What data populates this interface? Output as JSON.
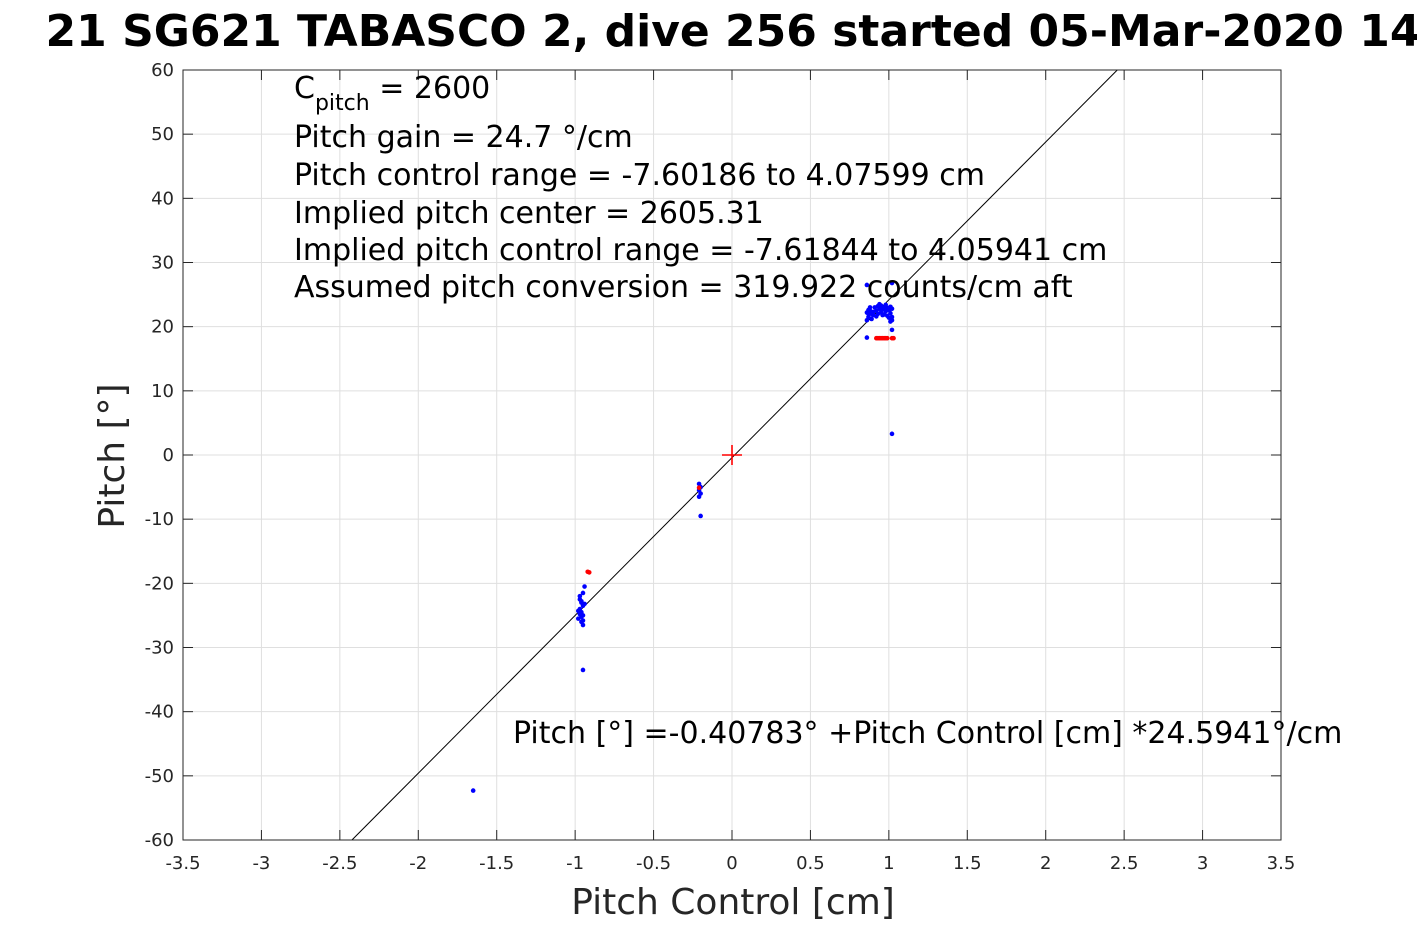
{
  "chart_data": {
    "type": "scatter",
    "title": "21 SG621 TABASCO 2, dive 256 started 05-Mar-2020 14",
    "xlabel": "Pitch Control [cm]",
    "ylabel": "Pitch [°]",
    "xlim": [
      -3.5,
      3.5
    ],
    "ylim": [
      -60,
      60
    ],
    "xticks": [
      -3.5,
      -3,
      -2.5,
      -2,
      -1.5,
      -1,
      -0.5,
      0,
      0.5,
      1,
      1.5,
      2,
      2.5,
      3,
      3.5
    ],
    "xtick_labels": [
      "-3.5",
      "-3",
      "-2.5",
      "-2",
      "-1.5",
      "-1",
      "-0.5",
      "0",
      "0.5",
      "1",
      "1.5",
      "2",
      "2.5",
      "3",
      "3.5"
    ],
    "yticks": [
      -60,
      -50,
      -40,
      -30,
      -20,
      -10,
      0,
      10,
      20,
      30,
      40,
      50,
      60
    ],
    "ytick_labels": [
      "-60",
      "-50",
      "-40",
      "-30",
      "-20",
      "-10",
      "0",
      "10",
      "20",
      "30",
      "40",
      "50",
      "60"
    ],
    "grid": true,
    "fit_line": {
      "intercept": -0.40783,
      "slope": 24.5941,
      "color": "#000000"
    },
    "origin_marker": {
      "x": 0,
      "y": 0,
      "symbol": "+",
      "color": "#ff0000"
    },
    "annotation_lines": [
      {
        "main": "C",
        "sub": "pitch",
        "rest": " = 2600"
      },
      {
        "main": "Pitch gain = 24.7 °/cm"
      },
      {
        "main": "Pitch control range = -7.60186 to 4.07599 cm"
      },
      {
        "main": "Implied pitch center = 2605.31"
      },
      {
        "main": "Implied pitch control range = -7.61844 to 4.05941 cm"
      },
      {
        "main": "Assumed pitch conversion = 319.922 counts/cm aft"
      }
    ],
    "fit_annotation": "Pitch [°] =-0.40783° +Pitch Control [cm] *24.5941°/cm",
    "series": [
      {
        "color": "#0000ff",
        "points": [
          [
            -1.65,
            -52.3
          ],
          [
            -0.95,
            -33.5
          ],
          [
            -0.97,
            -22.5
          ],
          [
            -0.96,
            -23.0
          ],
          [
            -0.95,
            -23.5
          ],
          [
            -0.97,
            -24.0
          ],
          [
            -0.96,
            -24.5
          ],
          [
            -0.95,
            -25.0
          ],
          [
            -0.98,
            -25.5
          ],
          [
            -0.96,
            -26.0
          ],
          [
            -0.95,
            -26.5
          ],
          [
            -0.97,
            -22.0
          ],
          [
            -0.95,
            -21.5
          ],
          [
            -0.94,
            -20.5
          ],
          [
            -0.96,
            -22.8
          ],
          [
            -0.98,
            -24.3
          ],
          [
            -0.95,
            -25.8
          ],
          [
            -0.94,
            -23.2
          ],
          [
            -0.97,
            -24.8
          ],
          [
            -0.96,
            -25.2
          ],
          [
            -0.21,
            -4.5
          ],
          [
            -0.2,
            -5.0
          ],
          [
            -0.21,
            -5.5
          ],
          [
            -0.2,
            -6.0
          ],
          [
            -0.21,
            -6.5
          ],
          [
            -0.2,
            -9.5
          ],
          [
            0.86,
            18.3
          ],
          [
            1.02,
            3.3
          ],
          [
            0.86,
            26.5
          ],
          [
            1.02,
            26.8
          ],
          [
            1.02,
            19.5
          ],
          [
            0.86,
            21.0
          ],
          [
            0.87,
            21.5
          ],
          [
            0.87,
            22.0
          ],
          [
            0.88,
            22.5
          ],
          [
            0.89,
            22.0
          ],
          [
            0.9,
            22.3
          ],
          [
            0.91,
            23.0
          ],
          [
            0.92,
            22.5
          ],
          [
            0.93,
            23.2
          ],
          [
            0.94,
            22.8
          ],
          [
            0.95,
            22.2
          ],
          [
            0.96,
            22.7
          ],
          [
            0.97,
            23.0
          ],
          [
            0.98,
            22.4
          ],
          [
            0.99,
            22.9
          ],
          [
            1.0,
            22.6
          ],
          [
            1.01,
            22.1
          ],
          [
            1.02,
            21.5
          ],
          [
            1.02,
            22.8
          ],
          [
            0.88,
            23.0
          ],
          [
            0.9,
            21.8
          ],
          [
            0.92,
            21.6
          ],
          [
            0.95,
            23.3
          ],
          [
            0.97,
            21.9
          ],
          [
            0.99,
            21.7
          ],
          [
            1.01,
            23.1
          ],
          [
            0.87,
            22.6
          ],
          [
            0.93,
            22.0
          ],
          [
            0.96,
            21.8
          ],
          [
            1.0,
            21.4
          ],
          [
            1.02,
            21.0
          ],
          [
            0.86,
            22.2
          ],
          [
            0.89,
            21.2
          ],
          [
            0.94,
            23.5
          ],
          [
            0.98,
            23.4
          ],
          [
            1.01,
            20.8
          ]
        ]
      },
      {
        "color": "#ff0000",
        "points": [
          [
            -0.92,
            -18.2
          ],
          [
            -0.91,
            -18.3
          ],
          [
            -0.21,
            -5.1
          ],
          [
            0.92,
            18.2
          ],
          [
            0.93,
            18.2
          ],
          [
            0.94,
            18.2
          ],
          [
            0.95,
            18.2
          ],
          [
            0.96,
            18.2
          ],
          [
            0.97,
            18.2
          ],
          [
            0.98,
            18.2
          ],
          [
            0.99,
            18.2
          ],
          [
            1.02,
            18.2
          ],
          [
            1.03,
            18.2
          ]
        ]
      }
    ]
  }
}
